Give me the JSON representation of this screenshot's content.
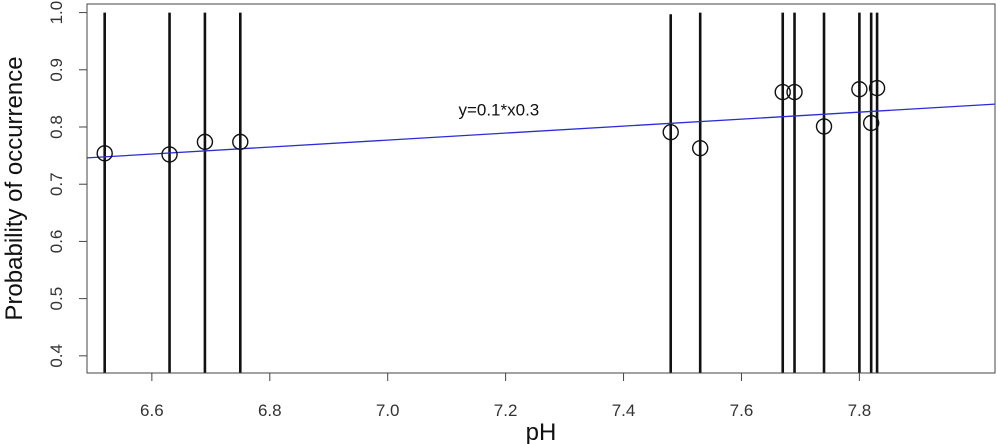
{
  "chart_data": {
    "type": "scatter",
    "title": "",
    "xlabel": "pH",
    "ylabel": "Probability of occurrence",
    "xlim": [
      6.49,
      8.03
    ],
    "ylim": [
      0.37,
      1.015
    ],
    "xticks": [
      6.6,
      6.8,
      7.0,
      7.2,
      7.4,
      7.6,
      7.8
    ],
    "xtick_labels": [
      "6.6",
      "6.8",
      "7.0",
      "7.2",
      "7.4",
      "7.6",
      "7.8"
    ],
    "yticks": [
      0.4,
      0.5,
      0.6,
      0.7,
      0.8,
      0.9,
      1.0
    ],
    "ytick_labels": [
      "0.4",
      "0.5",
      "0.6",
      "0.7",
      "0.8",
      "0.9",
      "1.0"
    ],
    "points": [
      {
        "x": 6.52,
        "y": 0.754
      },
      {
        "x": 6.63,
        "y": 0.752
      },
      {
        "x": 6.69,
        "y": 0.774
      },
      {
        "x": 6.75,
        "y": 0.774
      },
      {
        "x": 7.48,
        "y": 0.791
      },
      {
        "x": 7.53,
        "y": 0.763
      },
      {
        "x": 7.67,
        "y": 0.861
      },
      {
        "x": 7.69,
        "y": 0.861
      },
      {
        "x": 7.74,
        "y": 0.801
      },
      {
        "x": 7.8,
        "y": 0.866
      },
      {
        "x": 7.82,
        "y": 0.807
      },
      {
        "x": 7.83,
        "y": 0.868
      }
    ],
    "vertical_lines": [
      {
        "x": 6.52,
        "y_top": 1.0
      },
      {
        "x": 6.63,
        "y_top": 1.0
      },
      {
        "x": 6.69,
        "y_top": 1.0
      },
      {
        "x": 6.75,
        "y_top": 1.0
      },
      {
        "x": 7.48,
        "y_top": 0.997
      },
      {
        "x": 7.53,
        "y_top": 1.0
      },
      {
        "x": 7.67,
        "y_top": 1.0
      },
      {
        "x": 7.69,
        "y_top": 1.0
      },
      {
        "x": 7.74,
        "y_top": 1.0
      },
      {
        "x": 7.8,
        "y_top": 1.0
      },
      {
        "x": 7.82,
        "y_top": 1.0
      },
      {
        "x": 7.83,
        "y_top": 1.0
      }
    ],
    "fit_line": {
      "x": [
        6.49,
        8.03
      ],
      "y": [
        0.746,
        0.84
      ],
      "color": "#2b2bd9"
    },
    "annotation": {
      "text": "y=0.1*x0.3",
      "x": 7.12,
      "y": 0.82
    },
    "grid": false,
    "legend": "none",
    "point_color": "#111111",
    "line_color": "#111111"
  }
}
